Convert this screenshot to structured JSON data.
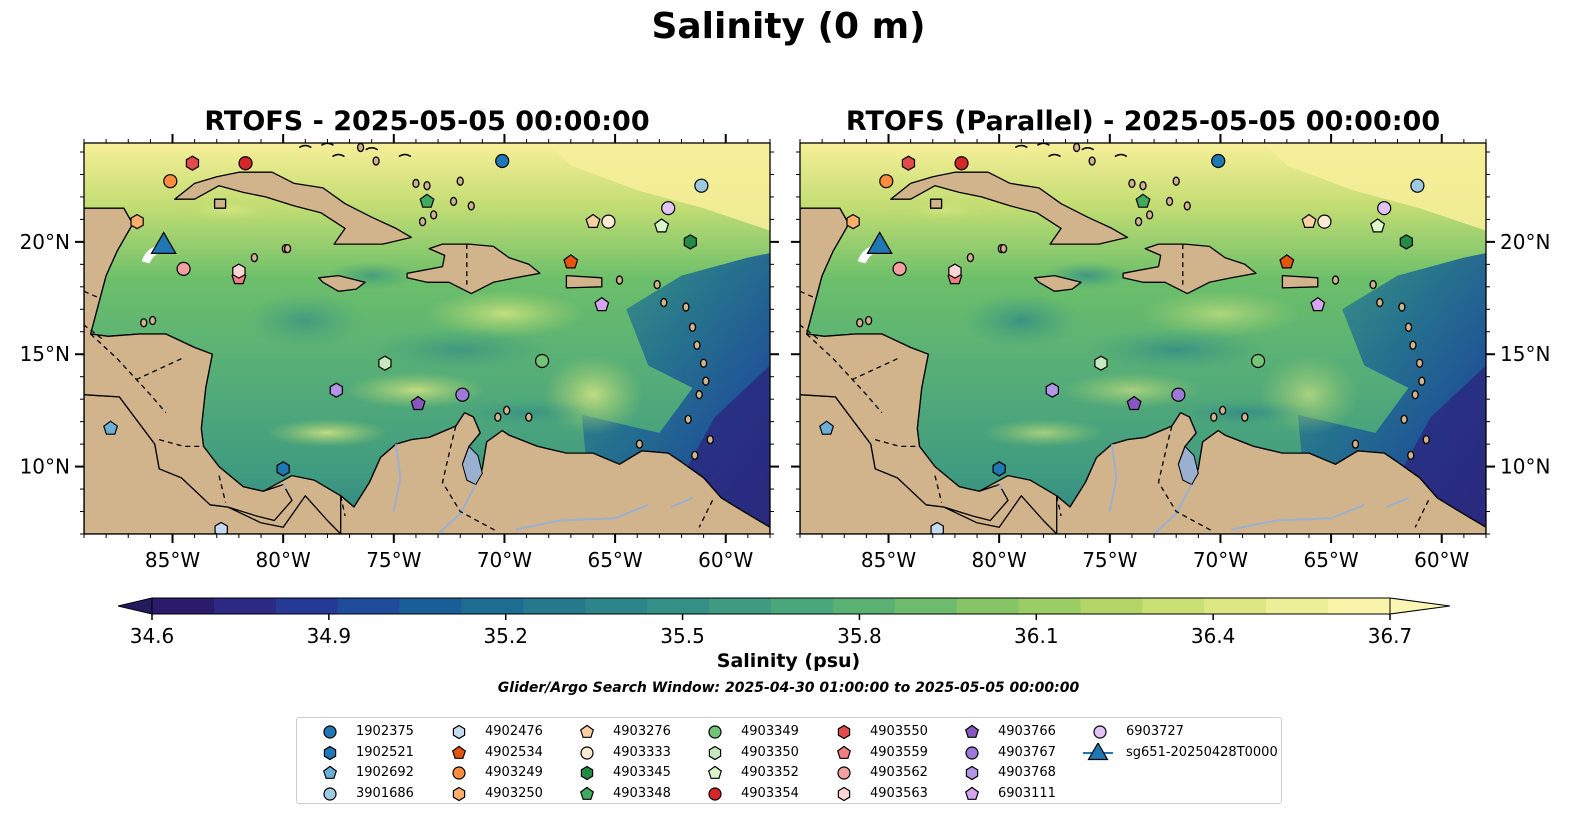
{
  "figure": {
    "title": "Salinity (0 m)",
    "colorbar_label": "Salinity (psu)",
    "search_window": "Glider/Argo Search Window: 2025-04-30 01:00:00 to 2025-05-05 00:00:00"
  },
  "chart_data": [
    {
      "type": "heatmap",
      "title": "RTOFS - 2025-05-05 00:00:00",
      "variable": "Salinity",
      "units": "psu",
      "depth": "0 m",
      "xlim": [
        -89,
        -58
      ],
      "ylim": [
        7,
        24.4
      ],
      "xticks": [
        -85,
        -80,
        -75,
        -70,
        -65,
        -60
      ],
      "xtick_labels": [
        "85°W",
        "80°W",
        "75°W",
        "70°W",
        "65°W",
        "60°W"
      ],
      "yticks": [
        10,
        15,
        20
      ],
      "ytick_labels": [
        "10°N",
        "15°N",
        "20°N"
      ],
      "ytick_side": "left"
    },
    {
      "type": "heatmap",
      "title": "RTOFS (Parallel) - 2025-05-05 00:00:00",
      "variable": "Salinity",
      "units": "psu",
      "depth": "0 m",
      "xlim": [
        -89,
        -58
      ],
      "ylim": [
        7,
        24.4
      ],
      "xticks": [
        -85,
        -80,
        -75,
        -70,
        -65,
        -60
      ],
      "xtick_labels": [
        "85°W",
        "80°W",
        "75°W",
        "70°W",
        "65°W",
        "60°W"
      ],
      "yticks": [
        10,
        15,
        20
      ],
      "ytick_labels": [
        "10°N",
        "15°N",
        "20°N"
      ],
      "ytick_side": "right"
    }
  ],
  "colorbar": {
    "min": 34.6,
    "max": 36.7,
    "extend": "both",
    "ticks": [
      "34.6",
      "34.9",
      "35.2",
      "35.5",
      "35.8",
      "36.1",
      "36.4",
      "36.7"
    ],
    "colors": [
      "#2a1b6b",
      "#2c2a85",
      "#263a95",
      "#1f4c9a",
      "#1a5e98",
      "#1d6d93",
      "#24798d",
      "#2b8589",
      "#349086",
      "#3e9b82",
      "#4aa67b",
      "#5ab173",
      "#6dbb6c",
      "#84c466",
      "#9ccd65",
      "#b4d669",
      "#cadf74",
      "#dde885",
      "#edf099",
      "#faf4ab"
    ],
    "under_color": "#241a5e",
    "over_color": "#fbf6b4"
  },
  "colors": {
    "land": "#d2b48c",
    "pacific": "#261b63",
    "rivers": "#9ab0d0",
    "sea_low": "#3e8f80",
    "sea_mid": "#6cbf6a",
    "sea_high": "#f7ef99"
  },
  "floats": [
    {
      "id": "1902375",
      "lon": -70.1,
      "lat": 23.6,
      "shape": "circle",
      "color": "#1f77b4"
    },
    {
      "id": "1902521",
      "lon": -80.0,
      "lat": 9.9,
      "shape": "hexagon",
      "color": "#1f77b4"
    },
    {
      "id": "1902692",
      "lon": -87.8,
      "lat": 11.7,
      "shape": "pentagon",
      "color": "#6baed6"
    },
    {
      "id": "3901686",
      "lon": -61.1,
      "lat": 22.5,
      "shape": "circle",
      "color": "#9ecae1"
    },
    {
      "id": "4902476",
      "lon": -82.8,
      "lat": 7.2,
      "shape": "hexagon",
      "color": "#c6dbef"
    },
    {
      "id": "4902534",
      "lon": -67.0,
      "lat": 19.1,
      "shape": "pentagon",
      "color": "#e6550d"
    },
    {
      "id": "4903249",
      "lon": -85.1,
      "lat": 22.7,
      "shape": "circle",
      "color": "#fd8d3c"
    },
    {
      "id": "4903250",
      "lon": -86.6,
      "lat": 20.9,
      "shape": "hexagon",
      "color": "#fdae6b"
    },
    {
      "id": "4903276",
      "lon": -66.0,
      "lat": 20.9,
      "shape": "pentagon",
      "color": "#fdd0a2"
    },
    {
      "id": "4903333",
      "lon": -65.3,
      "lat": 20.9,
      "shape": "circle",
      "color": "#fdebd4"
    },
    {
      "id": "4903345",
      "lon": -61.6,
      "lat": 20.0,
      "shape": "hexagon",
      "color": "#238b45"
    },
    {
      "id": "4903348",
      "lon": -73.5,
      "lat": 21.8,
      "shape": "pentagon",
      "color": "#41ab5d"
    },
    {
      "id": "4903349",
      "lon": -68.3,
      "lat": 14.7,
      "shape": "circle",
      "color": "#74c476"
    },
    {
      "id": "4903350",
      "lon": -75.4,
      "lat": 14.6,
      "shape": "hexagon",
      "color": "#c7e9c0"
    },
    {
      "id": "4903352",
      "lon": -62.9,
      "lat": 20.7,
      "shape": "pentagon",
      "color": "#d9f7c8"
    },
    {
      "id": "4903354",
      "lon": -81.7,
      "lat": 23.5,
      "shape": "circle",
      "color": "#d62728"
    },
    {
      "id": "4903550",
      "lon": -84.1,
      "lat": 23.5,
      "shape": "hexagon",
      "color": "#e34a4a"
    },
    {
      "id": "4903559",
      "lon": -82.0,
      "lat": 18.4,
      "shape": "pentagon",
      "color": "#f08080"
    },
    {
      "id": "4903562",
      "lon": -84.5,
      "lat": 18.8,
      "shape": "circle",
      "color": "#f4a0a0"
    },
    {
      "id": "4903563",
      "lon": -82.0,
      "lat": 18.7,
      "shape": "hexagon",
      "color": "#fcd5d5"
    },
    {
      "id": "4903766",
      "lon": -73.9,
      "lat": 12.8,
      "shape": "pentagon",
      "color": "#8856c0"
    },
    {
      "id": "4903767",
      "lon": -71.9,
      "lat": 13.2,
      "shape": "circle",
      "color": "#9e7ad8"
    },
    {
      "id": "4903768",
      "lon": -77.6,
      "lat": 13.4,
      "shape": "hexagon",
      "color": "#b295e6"
    },
    {
      "id": "6903111",
      "lon": -65.6,
      "lat": 17.2,
      "shape": "pentagon",
      "color": "#d4a6f2"
    },
    {
      "id": "6903727",
      "lon": -62.6,
      "lat": 21.5,
      "shape": "circle",
      "color": "#e2c3f6"
    }
  ],
  "glider": {
    "id": "sg651-20250428T0000",
    "lon": -85.4,
    "lat": 19.8,
    "shape": "triangle",
    "color": "#1f77b4"
  }
}
